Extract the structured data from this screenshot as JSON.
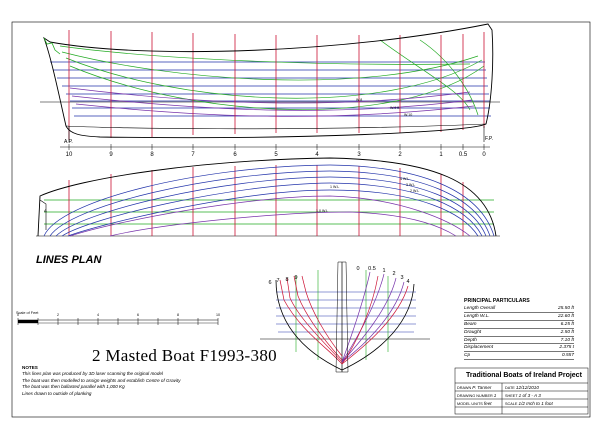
{
  "drawing": {
    "heading": "LINES PLAN",
    "title": "2 Masted Boat F1993-380",
    "scale_label": "Scale of Feet",
    "scale_ticks": [
      "0",
      "1",
      "2",
      "3",
      "4",
      "5",
      "6",
      "7",
      "8",
      "9",
      "10"
    ]
  },
  "profile": {
    "station_labels": [
      "10",
      "9",
      "8",
      "7",
      "6",
      "5",
      "4",
      "3",
      "2",
      "1",
      "0.5",
      "0"
    ],
    "ap_label": "A.P.",
    "fp_label": "F.P.",
    "wl_labels": [
      "W.8",
      "W.9 ft.",
      "W.10"
    ]
  },
  "plan": {
    "wl_labels": [
      "4 W.L",
      "3 W.L",
      "2 W.L",
      "1 W.L",
      "1.0 W.L"
    ]
  },
  "body": {
    "aft_labels": [
      "6",
      "7",
      "8",
      "9"
    ],
    "fwd_labels": [
      "0",
      "0.5",
      "1",
      "2",
      "3",
      "4"
    ]
  },
  "notes": {
    "heading": "NOTES",
    "lines": [
      "This lines plan was produced by 3D laser scanning the original model",
      "The boat was then modelled to assign weights and establish Centre of Gravity",
      "The boat was then ballasted parallel with 1,000 Kg",
      "Lines drawn to outside of planking"
    ]
  },
  "particulars": {
    "heading": "PRINCIPAL PARTICULARS",
    "rows": [
      {
        "label": "Length Overall",
        "value": "25.50 ft"
      },
      {
        "label": "Length W.L.",
        "value": "22.60 ft"
      },
      {
        "label": "Beam",
        "value": "6.25 ft"
      },
      {
        "label": "Draught",
        "value": "2.50 ft"
      },
      {
        "label": "Depth",
        "value": "7.10 ft"
      },
      {
        "label": "Displacement",
        "value": "2.375 t"
      },
      {
        "label": "Cp",
        "value": "0.557"
      }
    ]
  },
  "title_block": {
    "project": "Traditional Boats of Ireland Project",
    "drawn_label": "DRAWN",
    "drawn_value": "P. Tanner",
    "date_label": "DATE",
    "date_value": "12/12/2010",
    "drawing_no_label": "DRAWING NUMBER",
    "drawing_no_value": "1",
    "sheet_label": "SHEET",
    "sheet_value": "1 of 3 - A 3",
    "units_label": "MODEL UNITS",
    "units_value": "feet",
    "scale_label": "SCALE",
    "scale_value": "1/2 Inch to 1 foot"
  },
  "colors": {
    "stations": "#cc1133",
    "waterlines": "#2233aa",
    "buttocks": "#22aa22",
    "diagonals": "#7733aa",
    "hull": "#000000"
  }
}
